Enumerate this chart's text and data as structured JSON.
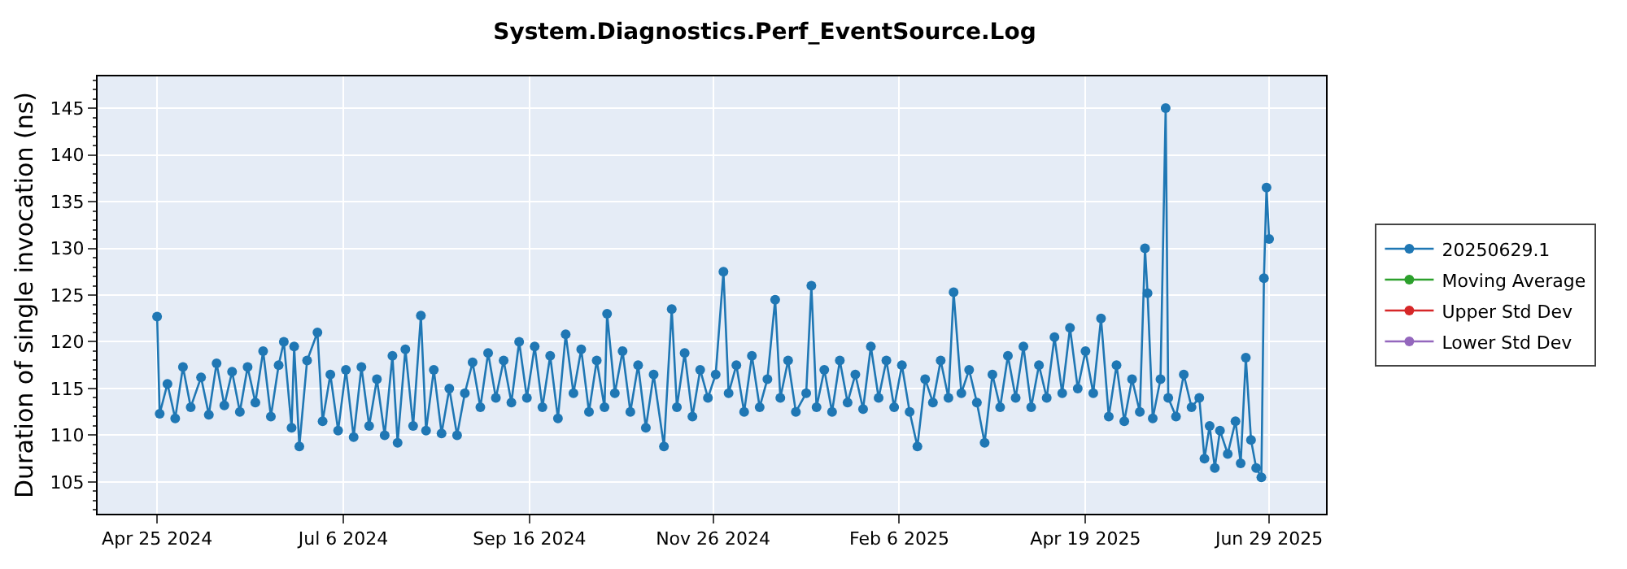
{
  "chart_data": {
    "type": "line",
    "title": "System.Diagnostics.Perf_EventSource.Log",
    "ylabel": "Duration of single invocation (ns)",
    "x": [
      "2024-04-25",
      "2024-04-26",
      "2024-04-29",
      "2024-05-02",
      "2024-05-05",
      "2024-05-08",
      "2024-05-12",
      "2024-05-15",
      "2024-05-18",
      "2024-05-21",
      "2024-05-24",
      "2024-05-27",
      "2024-05-30",
      "2024-06-02",
      "2024-06-05",
      "2024-06-08",
      "2024-06-11",
      "2024-06-13",
      "2024-06-16",
      "2024-06-17",
      "2024-06-19",
      "2024-06-22",
      "2024-06-26",
      "2024-06-28",
      "2024-07-01",
      "2024-07-04",
      "2024-07-07",
      "2024-07-10",
      "2024-07-13",
      "2024-07-16",
      "2024-07-19",
      "2024-07-22",
      "2024-07-25",
      "2024-07-27",
      "2024-07-30",
      "2024-08-02",
      "2024-08-05",
      "2024-08-07",
      "2024-08-10",
      "2024-08-13",
      "2024-08-16",
      "2024-08-19",
      "2024-08-22",
      "2024-08-25",
      "2024-08-28",
      "2024-08-31",
      "2024-09-03",
      "2024-09-06",
      "2024-09-09",
      "2024-09-12",
      "2024-09-15",
      "2024-09-18",
      "2024-09-21",
      "2024-09-24",
      "2024-09-27",
      "2024-09-30",
      "2024-10-03",
      "2024-10-06",
      "2024-10-09",
      "2024-10-12",
      "2024-10-15",
      "2024-10-16",
      "2024-10-19",
      "2024-10-22",
      "2024-10-25",
      "2024-10-28",
      "2024-10-31",
      "2024-11-03",
      "2024-11-07",
      "2024-11-10",
      "2024-11-12",
      "2024-11-15",
      "2024-11-18",
      "2024-11-21",
      "2024-11-24",
      "2024-11-27",
      "2024-11-30",
      "2024-12-02",
      "2024-12-05",
      "2024-12-08",
      "2024-12-11",
      "2024-12-14",
      "2024-12-17",
      "2024-12-20",
      "2024-12-22",
      "2024-12-25",
      "2024-12-28",
      "2025-01-01",
      "2025-01-03",
      "2025-01-05",
      "2025-01-08",
      "2025-01-11",
      "2025-01-14",
      "2025-01-17",
      "2025-01-20",
      "2025-01-23",
      "2025-01-26",
      "2025-01-29",
      "2025-02-01",
      "2025-02-04",
      "2025-02-07",
      "2025-02-10",
      "2025-02-13",
      "2025-02-16",
      "2025-02-19",
      "2025-02-22",
      "2025-02-25",
      "2025-02-27",
      "2025-03-02",
      "2025-03-05",
      "2025-03-08",
      "2025-03-11",
      "2025-03-14",
      "2025-03-17",
      "2025-03-20",
      "2025-03-23",
      "2025-03-26",
      "2025-03-29",
      "2025-04-01",
      "2025-04-04",
      "2025-04-07",
      "2025-04-10",
      "2025-04-13",
      "2025-04-16",
      "2025-04-19",
      "2025-04-22",
      "2025-04-25",
      "2025-04-28",
      "2025-05-01",
      "2025-05-04",
      "2025-05-07",
      "2025-05-10",
      "2025-05-12",
      "2025-05-13",
      "2025-05-15",
      "2025-05-18",
      "2025-05-20",
      "2025-05-21",
      "2025-05-24",
      "2025-05-27",
      "2025-05-30",
      "2025-06-02",
      "2025-06-04",
      "2025-06-06",
      "2025-06-08",
      "2025-06-10",
      "2025-06-13",
      "2025-06-16",
      "2025-06-18",
      "2025-06-20",
      "2025-06-22",
      "2025-06-24",
      "2025-06-26",
      "2025-06-27",
      "2025-06-28",
      "2025-06-29"
    ],
    "series": [
      {
        "name": "20250629.1",
        "color": "#1f77b4",
        "values": [
          122.7,
          112.3,
          115.5,
          111.8,
          117.3,
          113.0,
          116.2,
          112.2,
          117.7,
          113.2,
          116.8,
          112.5,
          117.3,
          113.5,
          119.0,
          112.0,
          117.5,
          120.0,
          110.8,
          119.5,
          108.8,
          118.0,
          121.0,
          111.5,
          116.5,
          110.5,
          117.0,
          109.8,
          117.3,
          111.0,
          116.0,
          110.0,
          118.5,
          109.2,
          119.2,
          111.0,
          122.8,
          110.5,
          117.0,
          110.2,
          115.0,
          110.0,
          114.5,
          117.8,
          113.0,
          118.8,
          114.0,
          118.0,
          113.5,
          120.0,
          114.0,
          119.5,
          113.0,
          118.5,
          111.8,
          120.8,
          114.5,
          119.2,
          112.5,
          118.0,
          113.0,
          123.0,
          114.5,
          119.0,
          112.5,
          117.5,
          110.8,
          116.5,
          108.8,
          123.5,
          113.0,
          118.8,
          112.0,
          117.0,
          114.0,
          116.5,
          127.5,
          114.5,
          117.5,
          112.5,
          118.5,
          113.0,
          116.0,
          124.5,
          114.0,
          118.0,
          112.5,
          114.5,
          126.0,
          113.0,
          117.0,
          112.5,
          118.0,
          113.5,
          116.5,
          112.8,
          119.5,
          114.0,
          118.0,
          113.0,
          117.5,
          112.5,
          108.8,
          116.0,
          113.5,
          118.0,
          114.0,
          125.3,
          114.5,
          117.0,
          113.5,
          109.2,
          116.5,
          113.0,
          118.5,
          114.0,
          119.5,
          113.0,
          117.5,
          114.0,
          120.5,
          114.5,
          121.5,
          115.0,
          119.0,
          114.5,
          122.5,
          112.0,
          117.5,
          111.5,
          116.0,
          112.5,
          130.0,
          125.2,
          111.8,
          116.0,
          145.0,
          114.0,
          112.0,
          116.5,
          113.0,
          114.0,
          107.5,
          111.0,
          106.5,
          110.5,
          108.0,
          111.5,
          107.0,
          118.3,
          109.5,
          106.5,
          105.5,
          126.8,
          136.5,
          131.0
        ]
      },
      {
        "name": "Moving Average",
        "color": "#2ca02c",
        "values": [
          null,
          null,
          null,
          null,
          null,
          null,
          null,
          null,
          null,
          null,
          null,
          null,
          null,
          null,
          null,
          null,
          null,
          null,
          null,
          null,
          null,
          null,
          null,
          null,
          null,
          null,
          null,
          null,
          null,
          null,
          null,
          null,
          null,
          null,
          null,
          null,
          null,
          null,
          null,
          null,
          null,
          null,
          null,
          null,
          null,
          null,
          null,
          null,
          null,
          null,
          null,
          null,
          null,
          null,
          null,
          null,
          null,
          null,
          null,
          null,
          null,
          null,
          null,
          null,
          null,
          null,
          null,
          null,
          null,
          null,
          null,
          null,
          null,
          null,
          null,
          null,
          null,
          null,
          null,
          null,
          null,
          null,
          null,
          null,
          null,
          null,
          null,
          null,
          null,
          null,
          null,
          null,
          null,
          null,
          null,
          null,
          null,
          null,
          null,
          null,
          null,
          null,
          null,
          null,
          null,
          null,
          null,
          null,
          null,
          null,
          null,
          null,
          null,
          null,
          null,
          null,
          null,
          null,
          null,
          null,
          null,
          null,
          null,
          null,
          null,
          null,
          null,
          null,
          null,
          null,
          null,
          null,
          null,
          null,
          null,
          null,
          null,
          null,
          null,
          null,
          null,
          null,
          null,
          null,
          null,
          null,
          null,
          null,
          null,
          null,
          null,
          null,
          null,
          null,
          null,
          null
        ]
      },
      {
        "name": "Upper Std Dev",
        "color": "#d62728",
        "values": [
          null,
          null,
          null,
          null,
          null,
          null,
          null,
          null,
          null,
          null,
          null,
          null,
          null,
          null,
          null,
          null,
          null,
          null,
          null,
          null,
          null,
          null,
          null,
          null,
          null,
          null,
          null,
          null,
          null,
          null,
          null,
          null,
          null,
          null,
          null,
          null,
          null,
          null,
          null,
          null,
          null,
          null,
          null,
          null,
          null,
          null,
          null,
          null,
          null,
          null,
          null,
          null,
          null,
          null,
          null,
          null,
          null,
          null,
          null,
          null,
          null,
          null,
          null,
          null,
          null,
          null,
          null,
          null,
          null,
          null,
          null,
          null,
          null,
          null,
          null,
          null,
          null,
          null,
          null,
          null,
          null,
          null,
          null,
          null,
          null,
          null,
          null,
          null,
          null,
          null,
          null,
          null,
          null,
          null,
          null,
          null,
          null,
          null,
          null,
          null,
          null,
          null,
          null,
          null,
          null,
          null,
          null,
          null,
          null,
          null,
          null,
          null,
          null,
          null,
          null,
          null,
          null,
          null,
          null,
          null,
          null,
          null,
          null,
          null,
          null,
          null,
          null,
          null,
          null,
          null,
          null,
          null,
          null,
          null,
          null,
          null,
          null,
          null,
          null,
          null,
          null,
          null,
          null,
          null,
          null,
          null,
          null,
          null,
          null,
          null,
          null,
          null,
          null,
          null,
          null,
          null
        ]
      },
      {
        "name": "Lower Std Dev",
        "color": "#9467bd",
        "values": [
          null,
          null,
          null,
          null,
          null,
          null,
          null,
          null,
          null,
          null,
          null,
          null,
          null,
          null,
          null,
          null,
          null,
          null,
          null,
          null,
          null,
          null,
          null,
          null,
          null,
          null,
          null,
          null,
          null,
          null,
          null,
          null,
          null,
          null,
          null,
          null,
          null,
          null,
          null,
          null,
          null,
          null,
          null,
          null,
          null,
          null,
          null,
          null,
          null,
          null,
          null,
          null,
          null,
          null,
          null,
          null,
          null,
          null,
          null,
          null,
          null,
          null,
          null,
          null,
          null,
          null,
          null,
          null,
          null,
          null,
          null,
          null,
          null,
          null,
          null,
          null,
          null,
          null,
          null,
          null,
          null,
          null,
          null,
          null,
          null,
          null,
          null,
          null,
          null,
          null,
          null,
          null,
          null,
          null,
          null,
          null,
          null,
          null,
          null,
          null,
          null,
          null,
          null,
          null,
          null,
          null,
          null,
          null,
          null,
          null,
          null,
          null,
          null,
          null,
          null,
          null,
          null,
          null,
          null,
          null,
          null,
          null,
          null,
          null,
          null,
          null,
          null,
          null,
          null,
          null,
          null,
          null,
          null,
          null,
          null,
          null,
          null,
          null,
          null,
          null,
          null,
          null,
          null,
          null,
          null,
          null,
          null,
          null,
          null,
          null,
          null,
          null,
          null,
          null,
          null,
          null
        ]
      }
    ],
    "xlim": [
      "2024-04-02",
      "2025-07-21"
    ],
    "xticks": [
      {
        "value": "2024-04-25",
        "label": "Apr 25 2024"
      },
      {
        "value": "2024-07-06",
        "label": "Jul 6 2024"
      },
      {
        "value": "2024-09-16",
        "label": "Sep 16 2024"
      },
      {
        "value": "2024-11-26",
        "label": "Nov 26 2024"
      },
      {
        "value": "2025-02-06",
        "label": "Feb 6 2025"
      },
      {
        "value": "2025-04-19",
        "label": "Apr 19 2025"
      },
      {
        "value": "2025-06-29",
        "label": "Jun 29 2025"
      }
    ],
    "ylim": [
      101.6,
      148.4
    ],
    "yticks": [
      105,
      110,
      115,
      120,
      125,
      130,
      135,
      140,
      145
    ],
    "grid": true,
    "legend": "right",
    "marker": "circle",
    "line_style": "solid"
  }
}
